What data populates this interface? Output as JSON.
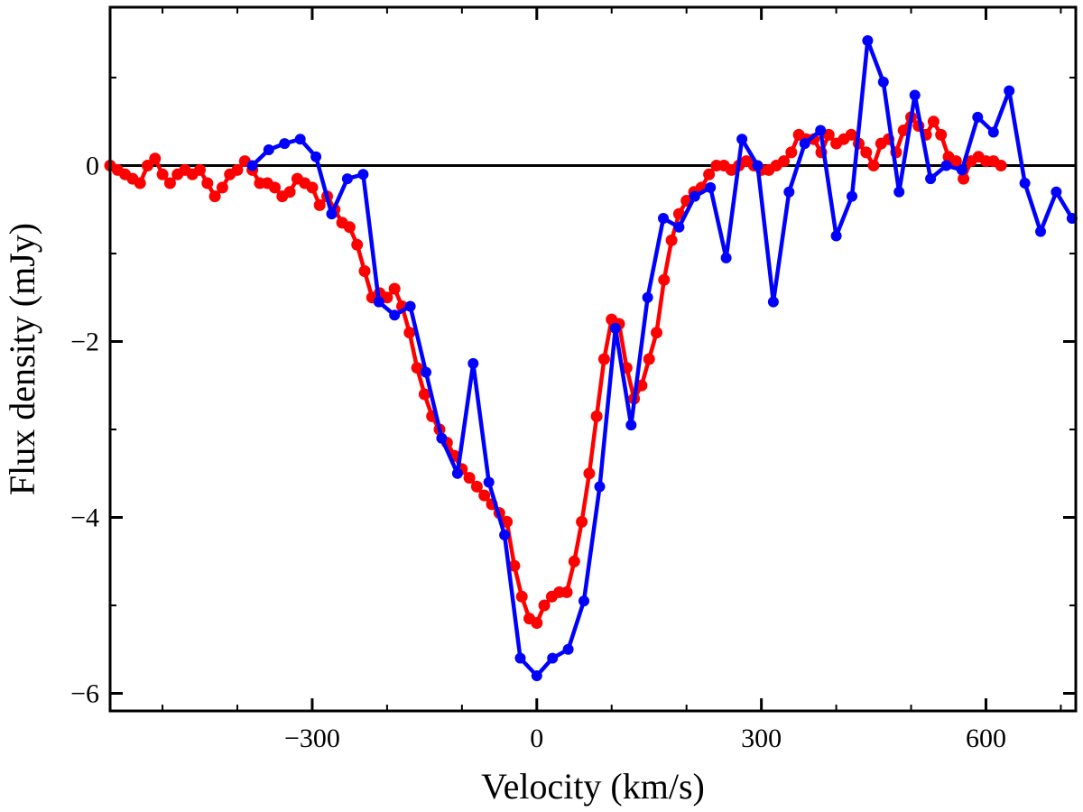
{
  "chart_data": {
    "type": "line",
    "title": "",
    "xlabel": "Velocity (km/s)",
    "ylabel": "Flux density (mJy)",
    "xlim": [
      -570,
      720
    ],
    "ylim": [
      -6.2,
      1.8
    ],
    "x_major_ticks": [
      -300,
      0,
      300,
      600
    ],
    "x_tick_labels": [
      "−300",
      "0",
      "300",
      "600"
    ],
    "x_minor_ticks": [
      -500,
      -400,
      -200,
      -100,
      100,
      200,
      400,
      500,
      700
    ],
    "y_major_ticks": [
      -6,
      -4,
      -2,
      0
    ],
    "y_tick_labels": [
      "−6",
      "−4",
      "−2",
      "0"
    ],
    "y_minor_ticks": [
      -5,
      -3,
      -1,
      1
    ],
    "zero_line": 0,
    "series": [
      {
        "name": "red",
        "color": "#ff0000",
        "x": [
          -570,
          -560,
          -550,
          -540,
          -530,
          -520,
          -510,
          -500,
          -490,
          -480,
          -470,
          -460,
          -450,
          -440,
          -430,
          -420,
          -410,
          -400,
          -390,
          -380,
          -370,
          -360,
          -350,
          -340,
          -330,
          -320,
          -310,
          -300,
          -290,
          -280,
          -270,
          -260,
          -250,
          -240,
          -230,
          -220,
          -210,
          -200,
          -190,
          -180,
          -170,
          -160,
          -150,
          -140,
          -130,
          -120,
          -110,
          -100,
          -90,
          -80,
          -70,
          -60,
          -50,
          -40,
          -30,
          -20,
          -10,
          0,
          10,
          20,
          30,
          40,
          50,
          60,
          70,
          80,
          90,
          100,
          110,
          120,
          130,
          140,
          150,
          160,
          170,
          180,
          190,
          200,
          210,
          220,
          230,
          240,
          250,
          260,
          270,
          280,
          290,
          300,
          310,
          320,
          330,
          340,
          350,
          360,
          370,
          380,
          390,
          400,
          410,
          420,
          430,
          440,
          450,
          460,
          470,
          480,
          490,
          500,
          510,
          520,
          530,
          540,
          550,
          560,
          570,
          580,
          590,
          600,
          610,
          620
        ],
        "values": [
          0.0,
          -0.05,
          -0.1,
          -0.15,
          -0.2,
          0.0,
          0.08,
          -0.1,
          -0.2,
          -0.1,
          -0.05,
          -0.1,
          -0.05,
          -0.2,
          -0.35,
          -0.25,
          -0.1,
          -0.05,
          0.05,
          -0.05,
          -0.2,
          -0.2,
          -0.25,
          -0.35,
          -0.3,
          -0.15,
          -0.2,
          -0.25,
          -0.45,
          -0.35,
          -0.5,
          -0.65,
          -0.7,
          -0.9,
          -1.2,
          -1.5,
          -1.45,
          -1.5,
          -1.4,
          -1.6,
          -1.9,
          -2.3,
          -2.6,
          -2.85,
          -3.0,
          -3.15,
          -3.3,
          -3.45,
          -3.55,
          -3.65,
          -3.75,
          -3.85,
          -3.95,
          -4.05,
          -4.55,
          -4.9,
          -5.15,
          -5.2,
          -5.0,
          -4.9,
          -4.85,
          -4.85,
          -4.5,
          -4.05,
          -3.5,
          -2.85,
          -2.2,
          -1.75,
          -1.8,
          -2.3,
          -2.65,
          -2.5,
          -2.2,
          -1.9,
          -1.3,
          -0.85,
          -0.55,
          -0.4,
          -0.3,
          -0.25,
          -0.1,
          0.0,
          0.0,
          -0.05,
          0.0,
          0.05,
          0.0,
          -0.05,
          -0.05,
          0.0,
          0.05,
          0.15,
          0.35,
          0.3,
          0.3,
          0.15,
          0.35,
          0.25,
          0.3,
          0.35,
          0.25,
          0.15,
          0.0,
          0.25,
          0.3,
          0.15,
          0.4,
          0.55,
          0.45,
          0.35,
          0.5,
          0.35,
          0.1,
          0.05,
          -0.15,
          0.05,
          0.1,
          0.05,
          0.05,
          0.0
        ],
        "marker": "circle"
      },
      {
        "name": "blue",
        "color": "#0000ff",
        "x": [
          -380,
          -358,
          -337,
          -316,
          -295,
          -274,
          -253,
          -232,
          -211,
          -190,
          -169,
          -148,
          -127,
          -106,
          -85,
          -64,
          -43,
          -22,
          0,
          21,
          42,
          63,
          84,
          105,
          126,
          148,
          169,
          190,
          211,
          232,
          253,
          274,
          295,
          316,
          337,
          358,
          379,
          400,
          421,
          442,
          463,
          484,
          505,
          526,
          547,
          568,
          589,
          610,
          631,
          652,
          673,
          694,
          715
        ],
        "values": [
          0.0,
          0.18,
          0.25,
          0.3,
          0.1,
          -0.55,
          -0.15,
          -0.1,
          -1.55,
          -1.7,
          -1.6,
          -2.35,
          -3.1,
          -3.5,
          -2.25,
          -3.6,
          -4.2,
          -5.6,
          -5.8,
          -5.6,
          -5.5,
          -4.95,
          -3.65,
          -1.85,
          -2.95,
          -1.5,
          -0.6,
          -0.7,
          -0.35,
          -0.25,
          -1.05,
          0.3,
          0.0,
          -1.55,
          -0.3,
          0.25,
          0.4,
          -0.8,
          -0.35,
          1.42,
          0.95,
          -0.3,
          0.8,
          -0.15,
          0.0,
          -0.05,
          0.55,
          0.38,
          0.85,
          -0.2,
          -0.75,
          -0.3,
          -0.6
        ],
        "marker": "circle"
      }
    ]
  }
}
